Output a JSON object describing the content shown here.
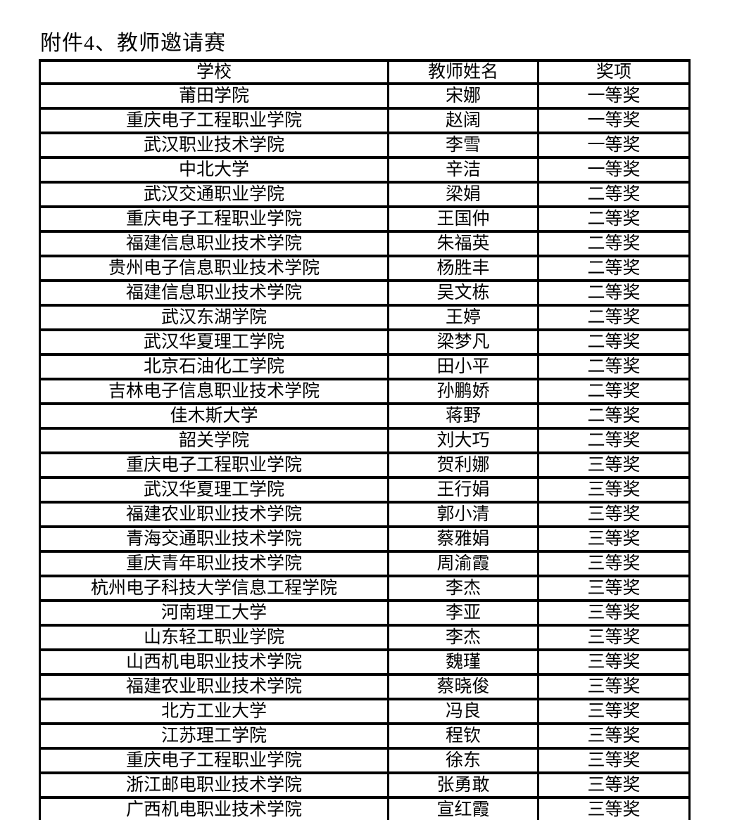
{
  "page": {
    "title": "附件4、教师邀请赛",
    "background_color": "#ffffff",
    "text_color": "#000000",
    "border_color": "#000000"
  },
  "table": {
    "columns": [
      "学校",
      "教师姓名",
      "奖项"
    ],
    "rows": [
      [
        "莆田学院",
        "宋娜",
        "一等奖"
      ],
      [
        "重庆电子工程职业学院",
        "赵阔",
        "一等奖"
      ],
      [
        "武汉职业技术学院",
        "李雪",
        "一等奖"
      ],
      [
        "中北大学",
        "辛洁",
        "一等奖"
      ],
      [
        "武汉交通职业学院",
        "梁娟",
        "二等奖"
      ],
      [
        "重庆电子工程职业学院",
        "王国仲",
        "二等奖"
      ],
      [
        "福建信息职业技术学院",
        "朱福英",
        "二等奖"
      ],
      [
        "贵州电子信息职业技术学院",
        "杨胜丰",
        "二等奖"
      ],
      [
        "福建信息职业技术学院",
        "吴文栋",
        "二等奖"
      ],
      [
        "武汉东湖学院",
        "王婷",
        "二等奖"
      ],
      [
        "武汉华夏理工学院",
        "梁梦凡",
        "二等奖"
      ],
      [
        "北京石油化工学院",
        "田小平",
        "二等奖"
      ],
      [
        "吉林电子信息职业技术学院",
        "孙鹏娇",
        "二等奖"
      ],
      [
        "佳木斯大学",
        "蒋野",
        "二等奖"
      ],
      [
        "韶关学院",
        "刘大巧",
        "二等奖"
      ],
      [
        "重庆电子工程职业学院",
        "贺利娜",
        "三等奖"
      ],
      [
        "武汉华夏理工学院",
        "王行娟",
        "三等奖"
      ],
      [
        "福建农业职业技术学院",
        "郭小清",
        "三等奖"
      ],
      [
        "青海交通职业技术学院",
        "蔡雅娟",
        "三等奖"
      ],
      [
        "重庆青年职业技术学院",
        "周渝霞",
        "三等奖"
      ],
      [
        "杭州电子科技大学信息工程学院",
        "李杰",
        "三等奖"
      ],
      [
        "河南理工大学",
        "李亚",
        "三等奖"
      ],
      [
        "山东轻工职业学院",
        "李杰",
        "三等奖"
      ],
      [
        "山西机电职业技术学院",
        "魏瑾",
        "三等奖"
      ],
      [
        "福建农业职业技术学院",
        "蔡晓俊",
        "三等奖"
      ],
      [
        "北方工业大学",
        "冯良",
        "三等奖"
      ],
      [
        "江苏理工学院",
        "程钦",
        "三等奖"
      ],
      [
        "重庆电子工程职业学院",
        "徐东",
        "三等奖"
      ],
      [
        "浙江邮电职业技术学院",
        "张勇敢",
        "三等奖"
      ],
      [
        "广西机电职业技术学院",
        "宣红霞",
        "三等奖"
      ]
    ]
  }
}
